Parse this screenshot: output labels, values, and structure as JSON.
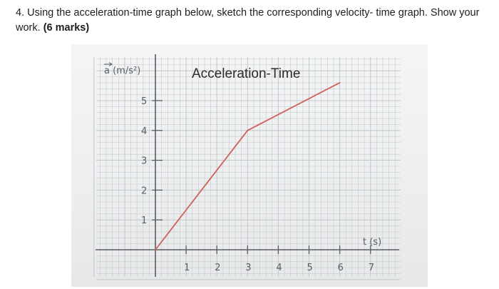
{
  "question": {
    "number": "4.",
    "text": "Using the acceleration-time graph below, sketch the corresponding velocity- time graph. Show your work.",
    "marks": "(6 marks)"
  },
  "graph": {
    "title": "Acceleration-Time",
    "y_axis_label": "a (m/s²)",
    "x_axis_label": "t (s)"
  },
  "colors": {
    "line": "#d0605a",
    "grid": "#c7cacc",
    "axis": "#5a5d62"
  },
  "chart_data": {
    "type": "line",
    "title": "Acceleration-Time",
    "xlabel": "t (s)",
    "ylabel": "a (m/s²)",
    "x_ticks": [
      "1",
      "2",
      "3",
      "4",
      "5",
      "6",
      "7"
    ],
    "y_ticks": [
      "1",
      "2",
      "3",
      "4",
      "5"
    ],
    "xlim": [
      0,
      7
    ],
    "ylim": [
      0,
      5
    ],
    "grid": true,
    "series": [
      {
        "x": [
          0,
          3,
          6
        ],
        "y": [
          0,
          4,
          5.6
        ]
      }
    ]
  }
}
